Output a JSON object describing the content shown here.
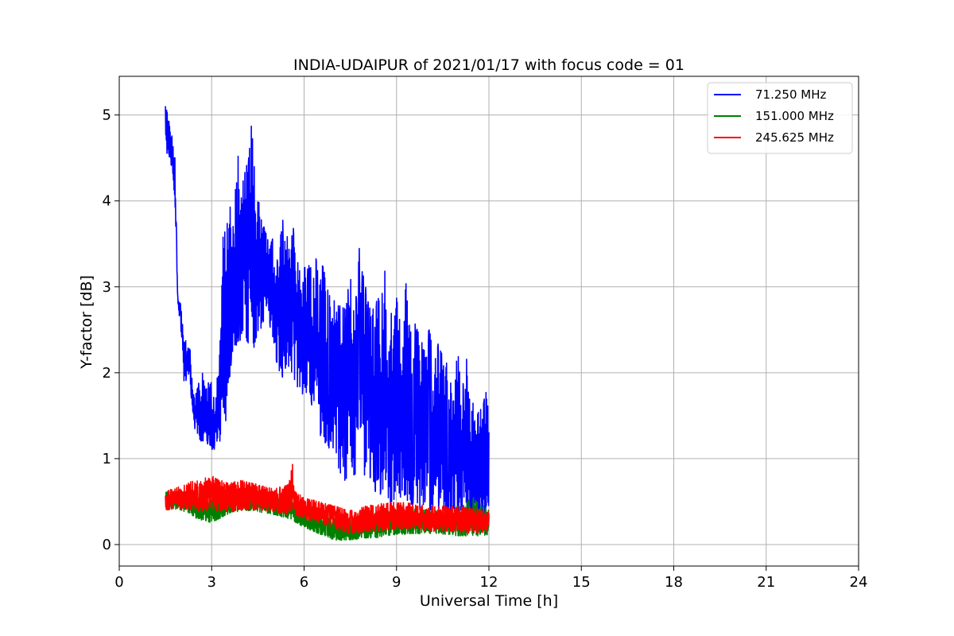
{
  "chart_data": {
    "type": "line",
    "title": "INDIA-UDAIPUR of 2021/01/17 with focus code = 01",
    "xlabel": "Universal Time [h]",
    "ylabel": "Y-factor [dB]",
    "xlim": [
      0,
      24
    ],
    "ylim": [
      -0.25,
      5.45
    ],
    "xticks": [
      0,
      3,
      6,
      9,
      12,
      15,
      18,
      21,
      24
    ],
    "yticks": [
      0,
      1,
      2,
      3,
      4,
      5
    ],
    "grid": true,
    "legend_position": "top-right",
    "series": [
      {
        "name": "71.250 MHz",
        "label": "  71.250 MHz",
        "color": "#0000ff",
        "x": [
          1.5,
          1.6,
          1.7,
          1.8,
          1.9,
          2.0,
          2.1,
          2.2,
          2.3,
          2.4,
          2.5,
          2.6,
          2.7,
          2.8,
          2.9,
          3.0,
          3.1,
          3.2,
          3.3,
          3.4,
          3.5,
          3.6,
          3.7,
          3.8,
          3.9,
          4.0,
          4.1,
          4.2,
          4.3,
          4.4,
          4.5,
          4.6,
          4.7,
          4.8,
          4.9,
          5.0,
          5.1,
          5.2,
          5.3,
          5.4,
          5.5,
          5.6,
          5.7,
          5.8,
          5.9,
          6.0,
          6.1,
          6.2,
          6.3,
          6.4,
          6.5,
          6.6,
          6.7,
          6.8,
          6.9,
          7.0,
          7.1,
          7.2,
          7.3,
          7.4,
          7.5,
          7.6,
          7.7,
          7.8,
          7.9,
          8.0,
          8.1,
          8.2,
          8.3,
          8.4,
          8.5,
          8.6,
          8.7,
          8.8,
          8.9,
          9.0,
          9.1,
          9.2,
          9.3,
          9.4,
          9.5,
          9.6,
          9.7,
          9.8,
          9.9,
          10.0,
          10.1,
          10.2,
          10.3,
          10.4,
          10.5,
          10.6,
          10.7,
          10.8,
          10.9,
          11.0,
          11.1,
          11.2,
          11.3,
          11.4,
          11.5,
          11.6,
          11.7,
          11.8,
          11.9,
          12.0
        ],
        "min": [
          4.5,
          4.5,
          4.4,
          3.9,
          2.8,
          2.5,
          1.9,
          1.9,
          1.9,
          1.4,
          1.3,
          1.2,
          1.2,
          1.2,
          1.15,
          1.1,
          1.1,
          1.2,
          1.2,
          1.5,
          1.3,
          2.0,
          2.3,
          2.3,
          2.4,
          2.3,
          2.4,
          2.3,
          2.2,
          2.3,
          2.4,
          2.5,
          2.6,
          2.6,
          2.5,
          2.4,
          2.1,
          2.0,
          1.9,
          2.0,
          2.0,
          2.0,
          1.9,
          1.8,
          1.8,
          1.7,
          1.6,
          1.7,
          1.5,
          1.4,
          1.3,
          1.2,
          1.1,
          1.1,
          1.2,
          1.0,
          0.9,
          0.8,
          0.7,
          0.7,
          0.8,
          0.8,
          0.7,
          0.6,
          0.8,
          0.8,
          0.7,
          0.7,
          0.6,
          0.7,
          0.5,
          0.5,
          0.5,
          0.4,
          0.4,
          0.6,
          0.5,
          0.6,
          0.5,
          0.5,
          0.4,
          0.5,
          0.4,
          0.4,
          0.4,
          0.5,
          0.4,
          0.4,
          0.4,
          0.4,
          0.4,
          0.3,
          0.3,
          0.3,
          0.3,
          0.3,
          0.3,
          0.3,
          0.3,
          0.3,
          0.2,
          0.2,
          0.2,
          0.1,
          0.1,
          0.1
        ],
        "max": [
          5.2,
          4.95,
          4.8,
          4.7,
          2.9,
          2.8,
          2.5,
          2.3,
          2.3,
          1.8,
          1.8,
          1.9,
          2.0,
          1.8,
          1.9,
          1.9,
          1.7,
          2.0,
          2.5,
          4.15,
          3.8,
          4.1,
          3.9,
          4.3,
          4.7,
          4.5,
          4.7,
          4.5,
          5.0,
          4.3,
          4.25,
          3.9,
          3.7,
          3.6,
          3.5,
          3.6,
          3.3,
          3.4,
          3.9,
          3.5,
          3.7,
          3.9,
          3.6,
          3.3,
          3.1,
          3.3,
          3.2,
          3.3,
          3.1,
          3.4,
          3.0,
          3.3,
          3.1,
          3.3,
          2.9,
          3.0,
          2.9,
          2.7,
          2.8,
          2.9,
          3.2,
          2.9,
          3.0,
          3.5,
          3.2,
          3.0,
          2.8,
          2.9,
          2.7,
          3.0,
          2.8,
          3.5,
          2.7,
          2.8,
          2.5,
          2.9,
          2.7,
          2.5,
          3.1,
          2.7,
          2.4,
          2.6,
          2.5,
          2.6,
          2.4,
          2.5,
          2.5,
          2.2,
          2.3,
          2.4,
          2.2,
          2.3,
          2.0,
          1.8,
          2.0,
          2.3,
          1.9,
          1.9,
          2.3,
          1.5,
          1.7,
          1.3,
          1.9,
          1.6,
          1.8,
          1.7
        ]
      },
      {
        "name": "151.000 MHz",
        "label": "151.000 MHz",
        "color": "#008000",
        "x": [
          1.5,
          2.0,
          2.5,
          3.0,
          3.5,
          4.0,
          4.5,
          5.0,
          5.5,
          6.0,
          6.5,
          7.0,
          7.5,
          8.0,
          8.5,
          9.0,
          9.5,
          10.0,
          10.5,
          11.0,
          11.5,
          12.0
        ],
        "min": [
          0.42,
          0.4,
          0.3,
          0.25,
          0.35,
          0.4,
          0.38,
          0.35,
          0.3,
          0.2,
          0.12,
          0.05,
          0.05,
          0.07,
          0.08,
          0.12,
          0.12,
          0.12,
          0.12,
          0.1,
          0.1,
          0.1
        ],
        "max": [
          0.62,
          0.62,
          0.6,
          0.55,
          0.6,
          0.65,
          0.6,
          0.55,
          0.52,
          0.42,
          0.35,
          0.3,
          0.3,
          0.35,
          0.38,
          0.4,
          0.42,
          0.4,
          0.4,
          0.45,
          0.55,
          0.4
        ]
      },
      {
        "name": "245.625 MHz",
        "label": "245.625 MHz",
        "color": "#ff0000",
        "x": [
          1.5,
          2.0,
          2.5,
          3.0,
          3.5,
          4.0,
          4.5,
          5.0,
          5.5,
          5.6,
          5.7,
          6.0,
          6.5,
          7.0,
          7.5,
          8.0,
          8.5,
          9.0,
          9.5,
          10.0,
          10.5,
          11.0,
          11.5,
          12.0
        ],
        "min": [
          0.4,
          0.42,
          0.38,
          0.38,
          0.38,
          0.4,
          0.4,
          0.38,
          0.35,
          0.4,
          0.35,
          0.3,
          0.25,
          0.18,
          0.12,
          0.15,
          0.15,
          0.18,
          0.18,
          0.15,
          0.15,
          0.15,
          0.12,
          0.15
        ],
        "max": [
          0.62,
          0.7,
          0.75,
          0.8,
          0.72,
          0.75,
          0.7,
          0.65,
          0.7,
          1.05,
          0.62,
          0.55,
          0.5,
          0.45,
          0.4,
          0.45,
          0.48,
          0.5,
          0.48,
          0.45,
          0.45,
          0.45,
          0.42,
          0.4
        ]
      }
    ]
  }
}
